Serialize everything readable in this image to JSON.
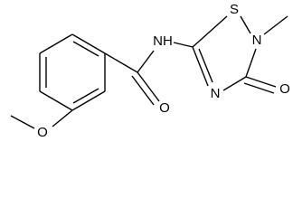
{
  "atoms": [
    {
      "label": "O"
    },
    {
      "label": "O"
    },
    {
      "label": "NH"
    },
    {
      "label": "S"
    },
    {
      "label": "N"
    },
    {
      "label": "N"
    },
    {
      "label": "O"
    }
  ]
}
